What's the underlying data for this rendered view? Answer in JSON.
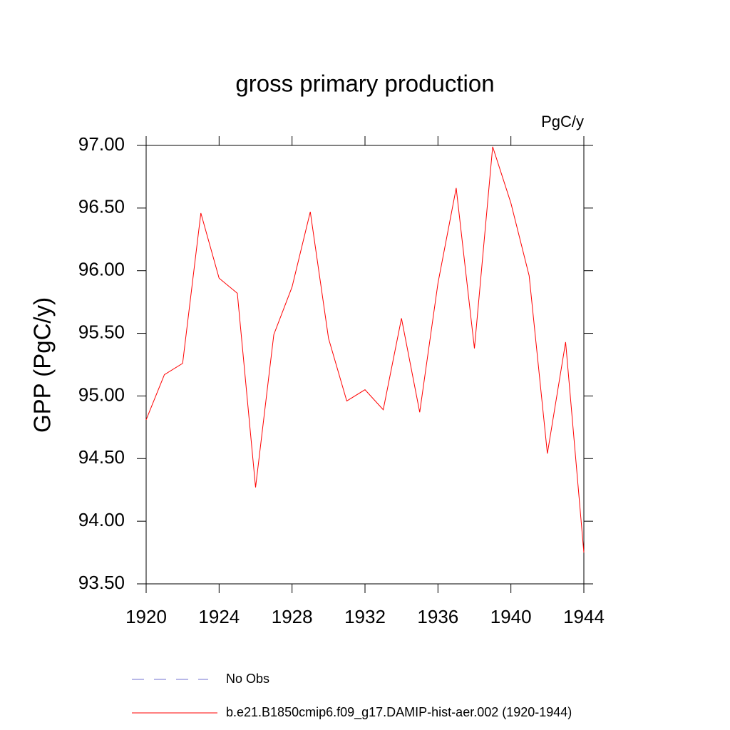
{
  "chart_data": {
    "type": "line",
    "title": "gross primary production",
    "units": "PgC/y",
    "y_label": "GPP  (PgC/y)",
    "x": [
      1920,
      1921,
      1922,
      1923,
      1924,
      1925,
      1926,
      1927,
      1928,
      1929,
      1930,
      1931,
      1932,
      1933,
      1934,
      1935,
      1936,
      1937,
      1938,
      1939,
      1940,
      1941,
      1942,
      1943,
      1944
    ],
    "series": [
      {
        "name": "b.e21.B1850cmip6.f09_g17.DAMIP-hist-aer.002 (1920-1944)",
        "color": "#ff0000",
        "values": [
          94.81,
          95.17,
          95.26,
          96.46,
          95.94,
          95.82,
          94.27,
          95.49,
          95.87,
          96.47,
          95.46,
          94.96,
          95.05,
          94.89,
          95.62,
          94.87,
          95.9,
          96.66,
          95.38,
          96.99,
          96.54,
          95.96,
          94.54,
          95.43,
          93.75
        ]
      }
    ],
    "no_obs_label": "No Obs",
    "no_obs_color": "#7070d0",
    "xlim": [
      1920,
      1944
    ],
    "xticks": [
      1920,
      1924,
      1928,
      1932,
      1936,
      1940,
      1944
    ],
    "ylim": [
      93.5,
      97
    ],
    "yticks": [
      {
        "value": 93.5,
        "label": "93.50"
      },
      {
        "value": 94,
        "label": "94.00"
      },
      {
        "value": 94.5,
        "label": "94.50"
      },
      {
        "value": 95,
        "label": "95.00"
      },
      {
        "value": 95.5,
        "label": "95.50"
      },
      {
        "value": 96,
        "label": "96.00"
      },
      {
        "value": 96.5,
        "label": "96.50"
      },
      {
        "value": 97,
        "label": "97.00"
      }
    ]
  }
}
